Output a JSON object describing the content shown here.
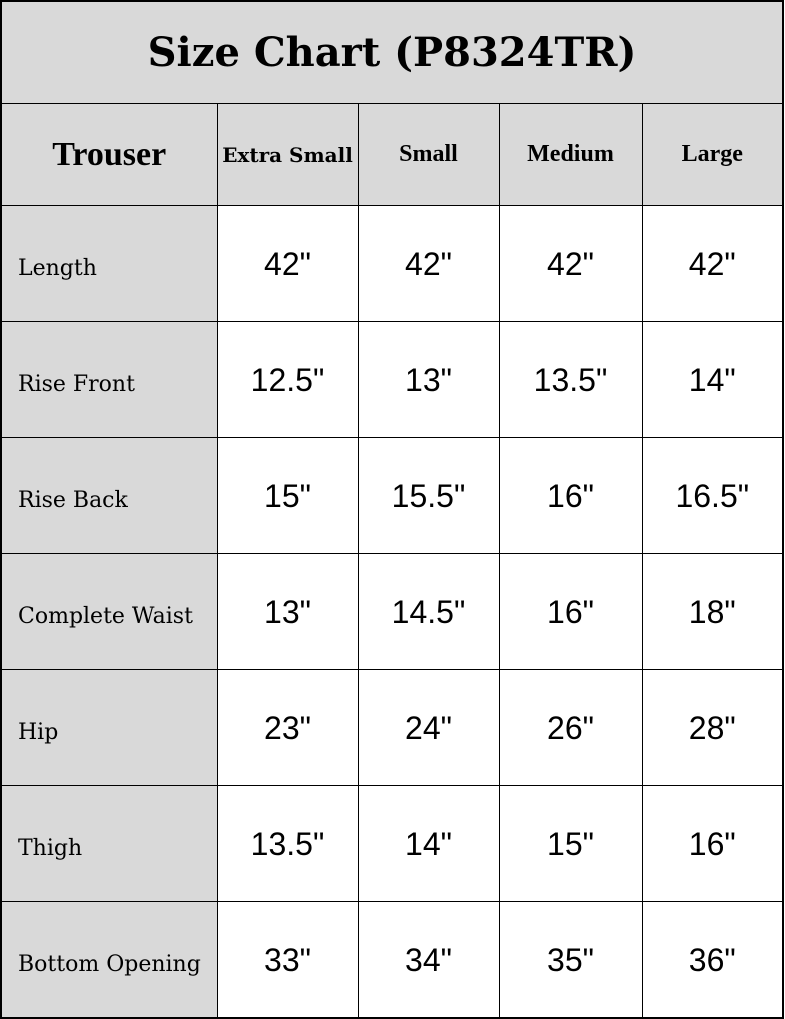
{
  "title": "Size Chart (P8324TR)",
  "header": {
    "category": "Trouser",
    "sizes": [
      "Extra Small",
      "Small",
      "Medium",
      "Large"
    ]
  },
  "rows": [
    {
      "label": "Length",
      "values": [
        "42\"",
        "42\"",
        "42\"",
        "42\""
      ]
    },
    {
      "label": "Rise Front",
      "values": [
        "12.5\"",
        "13\"",
        "13.5\"",
        "14\""
      ]
    },
    {
      "label": "Rise Back",
      "values": [
        "15\"",
        "15.5\"",
        "16\"",
        "16.5\""
      ]
    },
    {
      "label": "Complete Waist",
      "values": [
        "13\"",
        "14.5\"",
        "16\"",
        "18\""
      ]
    },
    {
      "label": "Hip",
      "values": [
        "23\"",
        "24\"",
        "26\"",
        "28\""
      ]
    },
    {
      "label": "Thigh",
      "values": [
        "13.5\"",
        "14\"",
        "15\"",
        "16\""
      ]
    },
    {
      "label": "Bottom Opening",
      "values": [
        "33\"",
        "34\"",
        "35\"",
        "36\""
      ]
    }
  ],
  "colors": {
    "header_bg": "#d9d9d9",
    "cell_bg": "#ffffff",
    "border": "#000000"
  }
}
